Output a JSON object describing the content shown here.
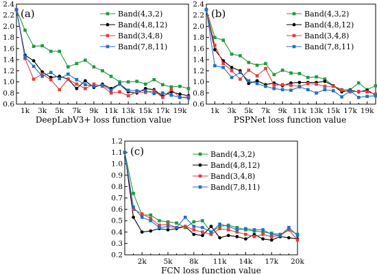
{
  "figure": {
    "panels": [
      "a",
      "b",
      "c"
    ]
  },
  "chart_data": [
    {
      "type": "line",
      "panel_label": "(a)",
      "xlabel": "DeepLabV3+ loss function value",
      "ylabel": "",
      "title": "",
      "x": [
        0,
        1,
        2,
        3,
        4,
        5,
        6,
        7,
        8,
        9,
        10,
        11,
        12,
        13,
        14,
        15,
        16,
        17,
        18,
        19,
        20
      ],
      "xlim": [
        0,
        20
      ],
      "ylim": [
        0.6,
        2.4
      ],
      "xticks": [
        1,
        3,
        5,
        7,
        9,
        11,
        13,
        15,
        17,
        19
      ],
      "xtick_labels": [
        "1k",
        "3k",
        "5k",
        "7k",
        "9k",
        "11k",
        "13k",
        "15k",
        "17k",
        "19k"
      ],
      "yticks": [
        0.6,
        0.8,
        1.0,
        1.2,
        1.4,
        1.6,
        1.8,
        2.0,
        2.2,
        2.4
      ],
      "ytick_labels": [
        "0.6",
        "0.8",
        "1.0",
        "1.2",
        "1.4",
        "1.6",
        "1.8",
        "2.0",
        "2.2",
        "2.4"
      ],
      "legend_position": "top-right",
      "series": [
        {
          "name": "Band(4,3,2)",
          "color": "#1e9a3c",
          "marker": "square",
          "values": [
            2.3,
            1.93,
            1.64,
            1.65,
            1.55,
            1.55,
            1.27,
            1.33,
            1.39,
            1.27,
            1.2,
            1.1,
            1.0,
            1.0,
            1.01,
            0.96,
            1.04,
            0.95,
            0.91,
            0.92,
            0.88
          ]
        },
        {
          "name": "Band(4,8,12)",
          "color": "#000000",
          "marker": "circle",
          "values": [
            2.3,
            1.48,
            1.38,
            1.18,
            1.08,
            1.1,
            1.05,
            0.88,
            1.02,
            0.9,
            0.96,
            0.88,
            0.96,
            0.82,
            0.8,
            0.88,
            0.86,
            0.74,
            0.82,
            0.78,
            0.75
          ]
        },
        {
          "name": "Band(3,4,8)",
          "color": "#e63c3c",
          "marker": "square",
          "values": [
            2.3,
            1.42,
            1.05,
            1.14,
            1.04,
            0.86,
            1.05,
            0.96,
            0.88,
            0.96,
            0.92,
            0.8,
            0.82,
            0.75,
            0.82,
            0.81,
            0.84,
            0.72,
            0.86,
            0.72,
            0.73
          ]
        },
        {
          "name": "Band(7,8,11)",
          "color": "#1f6fc4",
          "marker": "square",
          "values": [
            2.3,
            1.45,
            1.28,
            1.1,
            1.17,
            1.06,
            1.14,
            1.04,
            0.95,
            0.92,
            0.94,
            0.85,
            0.96,
            0.85,
            0.84,
            0.84,
            0.79,
            0.8,
            0.76,
            0.72,
            0.71
          ]
        }
      ]
    },
    {
      "type": "line",
      "panel_label": "(b)",
      "xlabel": "PSPNet loss function value",
      "ylabel": "",
      "title": "",
      "x": [
        0,
        1,
        2,
        3,
        4,
        5,
        6,
        7,
        8,
        9,
        10,
        11,
        12,
        13,
        14,
        15,
        16,
        17,
        18,
        19,
        20
      ],
      "xlim": [
        0,
        20
      ],
      "ylim": [
        0.6,
        2.4
      ],
      "xticks": [
        1,
        3,
        5,
        7,
        9,
        11,
        13,
        15,
        17,
        19
      ],
      "xtick_labels": [
        "1k",
        "3k",
        "5k",
        "7k",
        "9k",
        "11k",
        "13k",
        "15k",
        "17k",
        "19k"
      ],
      "yticks": [
        0.6,
        0.8,
        1.0,
        1.2,
        1.4,
        1.6,
        1.8,
        2.0,
        2.2,
        2.4
      ],
      "ytick_labels": [
        "0.6",
        "0.8",
        "1.0",
        "1.2",
        "1.4",
        "1.6",
        "1.8",
        "2.0",
        "2.2",
        "2.4"
      ],
      "legend_position": "top-right",
      "series": [
        {
          "name": "Band(4,3,2)",
          "color": "#1e9a3c",
          "marker": "square",
          "values": [
            2.3,
            1.8,
            1.75,
            1.5,
            1.47,
            1.35,
            1.3,
            1.33,
            1.13,
            1.21,
            1.16,
            1.15,
            1.08,
            1.09,
            1.05,
            0.93,
            0.86,
            0.86,
            0.98,
            0.86,
            0.93
          ]
        },
        {
          "name": "Band(4,8,12)",
          "color": "#000000",
          "marker": "circle",
          "values": [
            2.3,
            1.58,
            1.38,
            1.26,
            1.2,
            0.97,
            1.02,
            0.95,
            0.98,
            0.93,
            0.98,
            0.99,
            0.99,
            0.99,
            1.01,
            0.93,
            0.82,
            0.85,
            0.82,
            0.85,
            0.76
          ]
        },
        {
          "name": "Band(3,4,8)",
          "color": "#e63c3c",
          "marker": "square",
          "values": [
            2.3,
            1.66,
            1.33,
            1.2,
            1.05,
            1.21,
            1.11,
            1.24,
            0.94,
            0.95,
            0.94,
            0.92,
            0.97,
            0.96,
            0.92,
            0.92,
            0.85,
            0.82,
            0.83,
            0.82,
            0.78
          ]
        },
        {
          "name": "Band(7,8,11)",
          "color": "#1f6fc4",
          "marker": "square",
          "values": [
            2.3,
            1.29,
            1.26,
            1.08,
            1.17,
            1.02,
            0.97,
            0.92,
            0.88,
            0.86,
            0.85,
            0.91,
            0.86,
            0.8,
            0.86,
            0.84,
            0.73,
            0.84,
            0.72,
            0.74,
            0.75
          ]
        }
      ]
    },
    {
      "type": "line",
      "panel_label": "(c)",
      "xlabel": "FCN loss function value",
      "ylabel": "",
      "title": "",
      "x": [
        0,
        1,
        2,
        3,
        4,
        5,
        6,
        7,
        8,
        9,
        10,
        11,
        12,
        13,
        14,
        15,
        16,
        17,
        18,
        19,
        20
      ],
      "xlim": [
        0,
        20
      ],
      "ylim": [
        0.2,
        1.2
      ],
      "xticks": [
        2,
        5,
        8,
        11,
        14,
        17,
        20
      ],
      "xtick_labels": [
        "2k",
        "5k",
        "8k",
        "11k",
        "14k",
        "17k",
        "20k"
      ],
      "yticks": [
        0.2,
        0.3,
        0.4,
        0.5,
        0.6,
        0.7,
        0.8,
        0.9,
        1.0,
        1.1,
        1.2
      ],
      "ytick_labels": [
        "0.2",
        "0.3",
        "0.4",
        "0.5",
        "0.6",
        "0.7",
        "0.8",
        "0.9",
        "1.0",
        "1.1",
        "1.2"
      ],
      "legend_position": "top-right",
      "series": [
        {
          "name": "Band(4,3,2)",
          "color": "#1e9a3c",
          "marker": "square",
          "values": [
            1.1,
            0.74,
            0.55,
            0.55,
            0.5,
            0.49,
            0.48,
            0.44,
            0.49,
            0.5,
            0.4,
            0.45,
            0.46,
            0.44,
            0.42,
            0.41,
            0.4,
            0.39,
            0.38,
            0.42,
            0.38
          ]
        },
        {
          "name": "Band(4,8,12)",
          "color": "#000000",
          "marker": "circle",
          "values": [
            1.1,
            0.53,
            0.4,
            0.41,
            0.43,
            0.42,
            0.43,
            0.45,
            0.38,
            0.37,
            0.45,
            0.35,
            0.37,
            0.36,
            0.34,
            0.38,
            0.34,
            0.33,
            0.36,
            0.35,
            0.34
          ]
        },
        {
          "name": "Band(3,4,8)",
          "color": "#e63c3c",
          "marker": "square",
          "values": [
            1.1,
            0.6,
            0.56,
            0.52,
            0.46,
            0.47,
            0.44,
            0.45,
            0.42,
            0.4,
            0.38,
            0.43,
            0.42,
            0.4,
            0.38,
            0.36,
            0.38,
            0.36,
            0.37,
            0.42,
            0.33
          ]
        },
        {
          "name": "Band(7,8,11)",
          "color": "#1f6fc4",
          "marker": "square",
          "values": [
            1.1,
            0.62,
            0.53,
            0.5,
            0.44,
            0.45,
            0.44,
            0.53,
            0.45,
            0.44,
            0.4,
            0.47,
            0.45,
            0.42,
            0.43,
            0.42,
            0.42,
            0.38,
            0.37,
            0.44,
            0.37
          ]
        }
      ]
    }
  ]
}
